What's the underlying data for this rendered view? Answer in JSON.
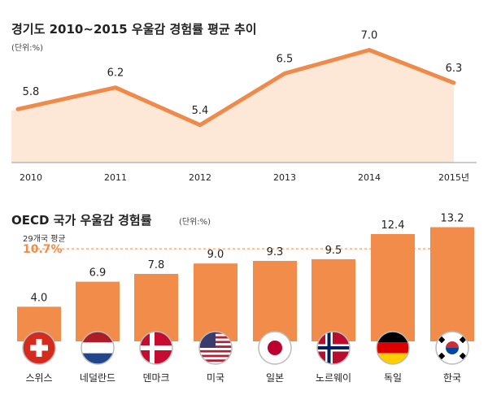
{
  "chart_data": [
    {
      "type": "line",
      "title": "경기도 2010~2015 우울감 경험률 평균 추이",
      "unit": "(단위:%)",
      "categories": [
        "2010",
        "2011",
        "2012",
        "2013",
        "2014",
        "2015년"
      ],
      "values": [
        5.8,
        6.2,
        5.4,
        6.5,
        7.0,
        6.3
      ],
      "value_labels": [
        "5.8",
        "6.2",
        "5.4",
        "6.5",
        "7.0",
        "6.3"
      ],
      "ylim": [
        4.6,
        7.2
      ],
      "grid": false,
      "colors": {
        "line": "#f08a4b",
        "fill": "#fde7d6"
      }
    },
    {
      "type": "bar",
      "title": "OECD 국가 우울감 경험률",
      "unit": "(단위:%)",
      "categories": [
        "스위스",
        "네덜란드",
        "덴마크",
        "미국",
        "일본",
        "노르웨이",
        "독일",
        "한국"
      ],
      "values": [
        4.0,
        6.9,
        7.8,
        9.0,
        9.3,
        9.5,
        12.4,
        13.2
      ],
      "value_labels": [
        "4.0",
        "6.9",
        "7.8",
        "9.0",
        "9.3",
        "9.5",
        "12.4",
        "13.2"
      ],
      "flag_icons": [
        "switzerland-flag-icon",
        "netherlands-flag-icon",
        "denmark-flag-icon",
        "usa-flag-icon",
        "japan-flag-icon",
        "norway-flag-icon",
        "germany-flag-icon",
        "korea-flag-icon"
      ],
      "reference_line": {
        "label": "29개국 평균",
        "value": 10.7,
        "value_label": "10.7%"
      },
      "ylim": [
        0,
        14
      ],
      "grid": false,
      "colors": {
        "bar": "#f28c4a",
        "reference": "#f28c4a"
      }
    }
  ]
}
